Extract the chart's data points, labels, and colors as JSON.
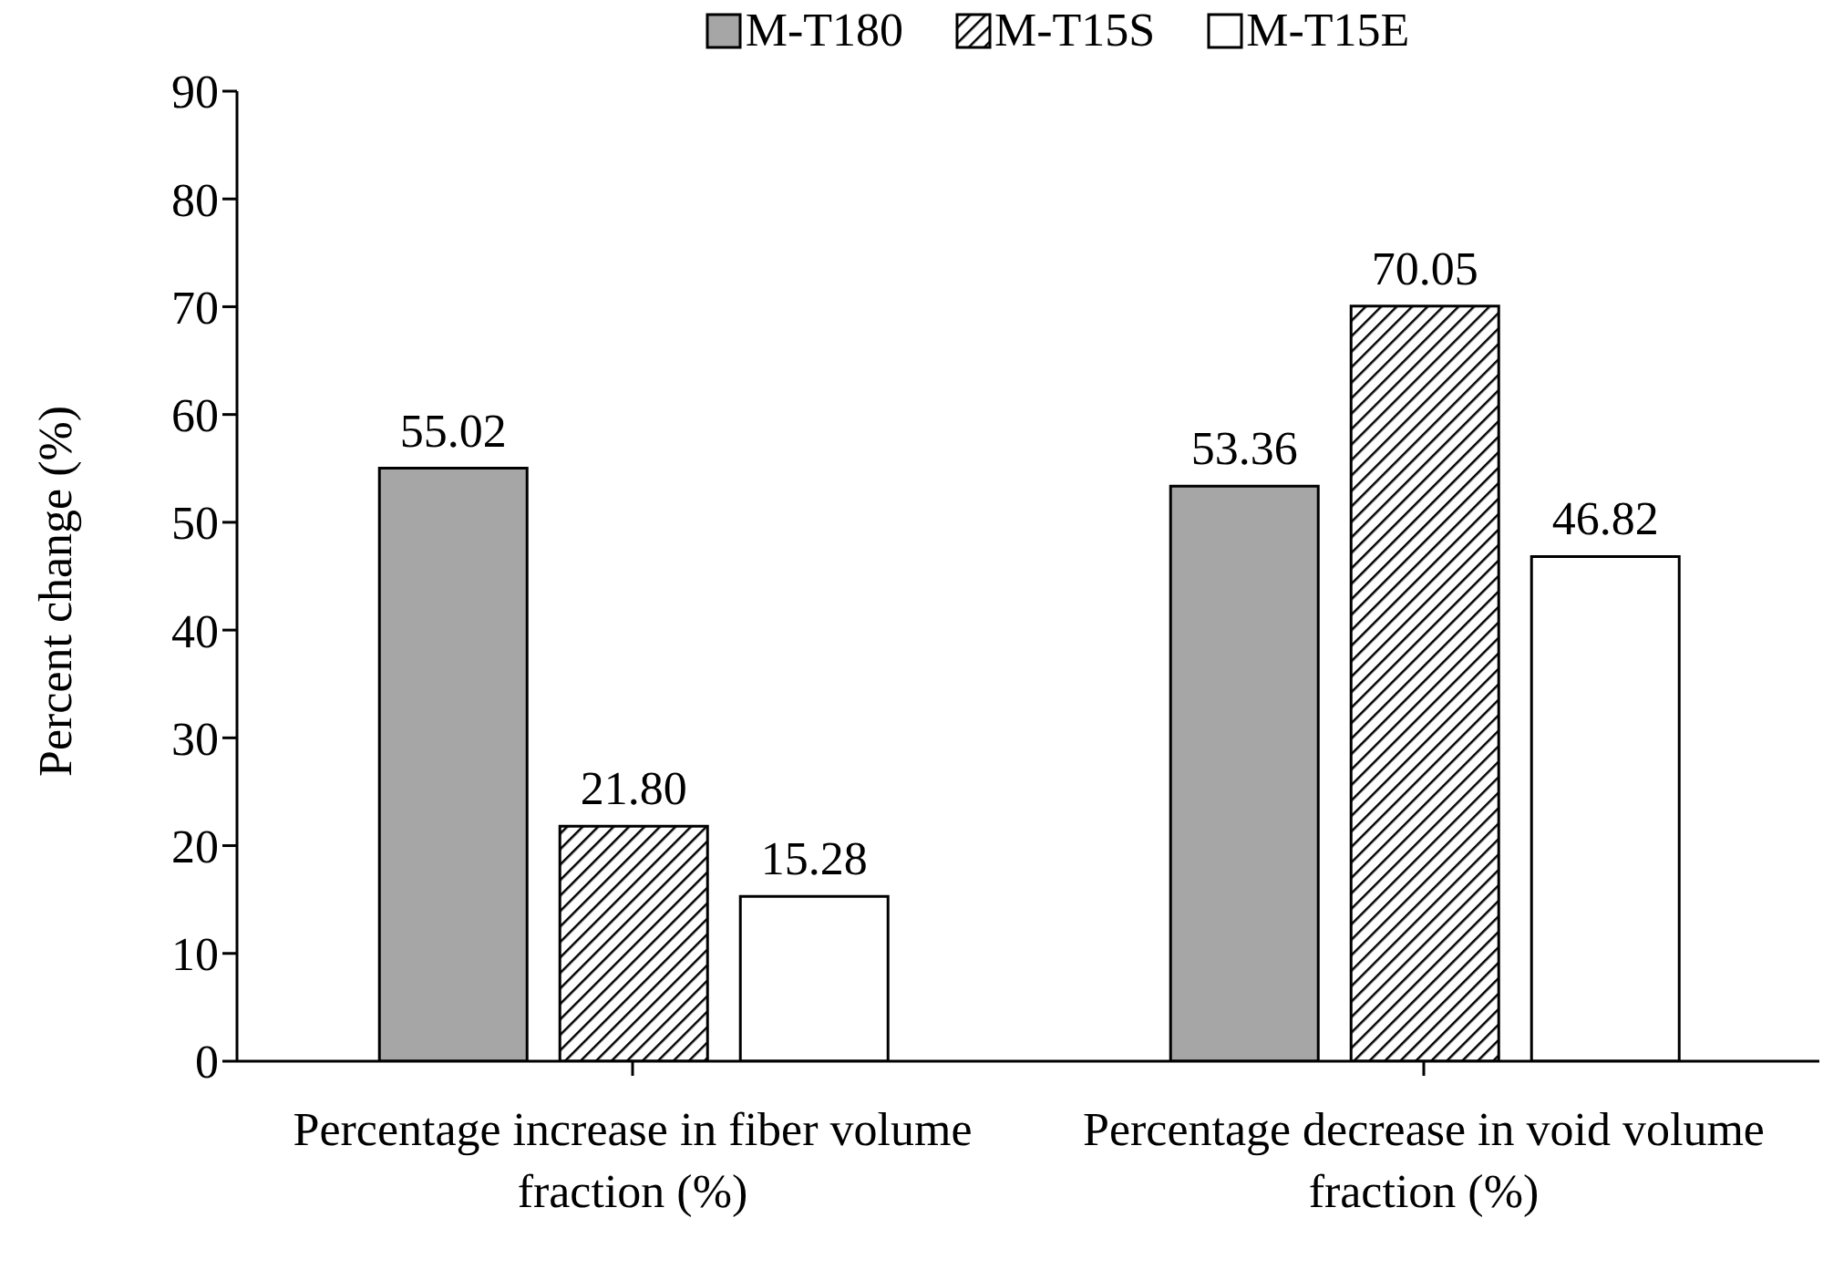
{
  "chart_data": {
    "type": "bar",
    "ylabel": "Percent change (%)",
    "categories": [
      "Percentage increase in fiber volume fraction (%)",
      "Percentage decrease in void volume fraction (%)"
    ],
    "series": [
      {
        "name": "M-T180",
        "color": "#a6a6a6",
        "values": [
          55.02,
          53.36
        ],
        "value_labels": [
          "55.02",
          "53.36"
        ]
      },
      {
        "name": "M-T15S",
        "color": "#000000",
        "values": [
          21.8,
          70.05
        ],
        "value_labels": [
          "21.80",
          "70.05"
        ]
      },
      {
        "name": "M-T15E",
        "color": "#ffffff",
        "values": [
          15.28,
          46.82
        ],
        "value_labels": [
          "15.28",
          "46.82"
        ]
      }
    ],
    "ylim": [
      0,
      90
    ],
    "yticks": [
      0,
      10,
      20,
      30,
      40,
      50,
      60,
      70,
      80,
      90
    ],
    "grid": false,
    "legend": "top"
  }
}
